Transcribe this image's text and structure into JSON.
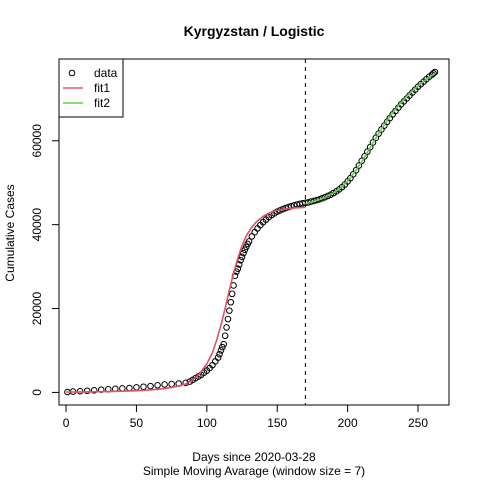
{
  "chart_data": {
    "type": "scatter",
    "title": "Kyrgyzstan / Logistic",
    "xlabel": "Days since 2020-03-28",
    "xlabel2": "Simple Moving Avarage (window size = 7)",
    "ylabel": "Cumulative Cases",
    "xlim": [
      -5,
      272
    ],
    "ylim": [
      -3000,
      79500
    ],
    "x_ticks": [
      0,
      50,
      100,
      150,
      200,
      250
    ],
    "y_ticks": [
      0,
      20000,
      40000,
      60000
    ],
    "vline": {
      "x": 170,
      "style": "dashed"
    },
    "legend": {
      "position": "top-left",
      "entries": [
        "data",
        "fit1",
        "fit2"
      ]
    },
    "series": [
      {
        "name": "data",
        "kind": "points",
        "color": "#000000",
        "points": [
          [
            1,
            100
          ],
          [
            5,
            200
          ],
          [
            10,
            300
          ],
          [
            15,
            400
          ],
          [
            20,
            500
          ],
          [
            25,
            650
          ],
          [
            30,
            750
          ],
          [
            35,
            850
          ],
          [
            40,
            950
          ],
          [
            45,
            1050
          ],
          [
            50,
            1200
          ],
          [
            55,
            1350
          ],
          [
            60,
            1500
          ],
          [
            65,
            1700
          ],
          [
            70,
            1900
          ],
          [
            75,
            2000
          ],
          [
            80,
            2100
          ],
          [
            85,
            2300
          ],
          [
            88,
            2600
          ],
          [
            90,
            3000
          ],
          [
            92,
            3400
          ],
          [
            94,
            3800
          ],
          [
            96,
            4200
          ],
          [
            98,
            4700
          ],
          [
            100,
            5200
          ],
          [
            102,
            5800
          ],
          [
            104,
            6500
          ],
          [
            106,
            7400
          ],
          [
            108,
            8300
          ],
          [
            109,
            9100
          ],
          [
            110,
            10000
          ],
          [
            111,
            10800
          ],
          [
            112,
            11500
          ],
          [
            113,
            13500
          ],
          [
            114,
            15500
          ],
          [
            115,
            17500
          ],
          [
            116,
            19500
          ],
          [
            117,
            21500
          ],
          [
            118,
            23500
          ],
          [
            119,
            25500
          ],
          [
            120,
            27800
          ],
          [
            121,
            28800
          ],
          [
            122,
            29500
          ],
          [
            123,
            30500
          ],
          [
            124,
            31500
          ],
          [
            125,
            32300
          ],
          [
            126,
            33200
          ],
          [
            127,
            34000
          ],
          [
            128,
            34700
          ],
          [
            129,
            35400
          ],
          [
            130,
            36000
          ],
          [
            132,
            37200
          ],
          [
            134,
            38200
          ],
          [
            136,
            39100
          ],
          [
            138,
            39900
          ],
          [
            140,
            40600
          ],
          [
            142,
            41200
          ],
          [
            144,
            41800
          ],
          [
            146,
            42300
          ],
          [
            148,
            42700
          ],
          [
            150,
            43100
          ],
          [
            152,
            43400
          ],
          [
            154,
            43700
          ],
          [
            156,
            43950
          ],
          [
            158,
            44200
          ],
          [
            160,
            44400
          ],
          [
            162,
            44600
          ],
          [
            164,
            44800
          ],
          [
            166,
            44950
          ],
          [
            168,
            45100
          ],
          [
            170,
            45200
          ],
          [
            172,
            45300
          ],
          [
            174,
            45500
          ],
          [
            176,
            45650
          ],
          [
            178,
            45850
          ],
          [
            180,
            46050
          ],
          [
            182,
            46300
          ],
          [
            184,
            46550
          ],
          [
            186,
            46850
          ],
          [
            188,
            47150
          ],
          [
            190,
            47550
          ],
          [
            192,
            47950
          ],
          [
            194,
            48400
          ],
          [
            196,
            48950
          ],
          [
            198,
            49550
          ],
          [
            200,
            50300
          ],
          [
            202,
            51100
          ],
          [
            204,
            52000
          ],
          [
            206,
            53000
          ],
          [
            208,
            54100
          ],
          [
            210,
            55200
          ],
          [
            212,
            56300
          ],
          [
            214,
            57400
          ],
          [
            216,
            58500
          ],
          [
            218,
            59600
          ],
          [
            220,
            60700
          ],
          [
            222,
            61700
          ],
          [
            224,
            62700
          ],
          [
            226,
            63600
          ],
          [
            228,
            64500
          ],
          [
            230,
            65400
          ],
          [
            232,
            66300
          ],
          [
            234,
            67100
          ],
          [
            236,
            67900
          ],
          [
            238,
            68700
          ],
          [
            240,
            69400
          ],
          [
            242,
            70100
          ],
          [
            244,
            70800
          ],
          [
            246,
            71500
          ],
          [
            248,
            72200
          ],
          [
            250,
            72900
          ],
          [
            252,
            73500
          ],
          [
            254,
            74100
          ],
          [
            256,
            74700
          ],
          [
            258,
            75300
          ],
          [
            260,
            75800
          ],
          [
            261,
            76100
          ],
          [
            262,
            76400
          ]
        ]
      },
      {
        "name": "fit1",
        "kind": "line",
        "color": "#DF536B",
        "points": [
          [
            0,
            100
          ],
          [
            10,
            120
          ],
          [
            20,
            150
          ],
          [
            30,
            200
          ],
          [
            40,
            280
          ],
          [
            50,
            400
          ],
          [
            60,
            600
          ],
          [
            70,
            900
          ],
          [
            80,
            1500
          ],
          [
            85,
            2000
          ],
          [
            90,
            3000
          ],
          [
            95,
            4500
          ],
          [
            100,
            6800
          ],
          [
            104,
            9500
          ],
          [
            107,
            12500
          ],
          [
            110,
            16000
          ],
          [
            113,
            20000
          ],
          [
            116,
            24500
          ],
          [
            119,
            28500
          ],
          [
            122,
            32000
          ],
          [
            125,
            35000
          ],
          [
            128,
            37300
          ],
          [
            131,
            39000
          ],
          [
            135,
            40600
          ],
          [
            140,
            42000
          ],
          [
            145,
            42900
          ],
          [
            150,
            43400
          ],
          [
            155,
            43700
          ],
          [
            160,
            43900
          ],
          [
            165,
            44050
          ],
          [
            170,
            44150
          ]
        ]
      },
      {
        "name": "fit2",
        "kind": "line",
        "color": "#61D04F",
        "points": [
          [
            170,
            45000
          ],
          [
            175,
            45450
          ],
          [
            180,
            46000
          ],
          [
            185,
            46700
          ],
          [
            190,
            47600
          ],
          [
            195,
            48800
          ],
          [
            200,
            50400
          ],
          [
            205,
            52500
          ],
          [
            210,
            55000
          ],
          [
            215,
            57800
          ],
          [
            220,
            60600
          ],
          [
            225,
            63300
          ],
          [
            230,
            65800
          ],
          [
            235,
            68000
          ],
          [
            240,
            69900
          ],
          [
            245,
            71600
          ],
          [
            250,
            73100
          ],
          [
            255,
            74400
          ],
          [
            260,
            75600
          ],
          [
            262,
            76000
          ]
        ]
      }
    ]
  }
}
